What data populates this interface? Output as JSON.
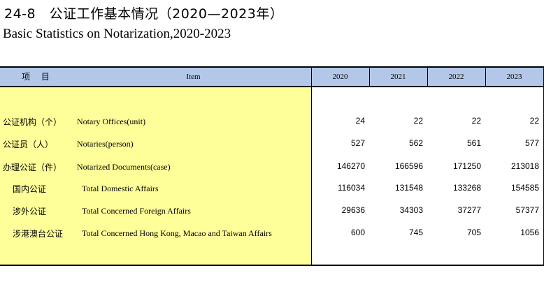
{
  "title": {
    "cn": "24-8　公证工作基本情况（2020—2023年）",
    "en": "Basic Statistics on Notarization,2020-2023"
  },
  "header": {
    "item_cn": "项 目",
    "item_en": "Item",
    "years": [
      "2020",
      "2021",
      "2022",
      "2023"
    ]
  },
  "rows": [
    {
      "cn": "公证机构（个）",
      "en": "Notary Offices(unit)",
      "values": [
        "24",
        "22",
        "22",
        "22"
      ]
    },
    {
      "cn": "公证员（人）",
      "en": "Notaries(person)",
      "values": [
        "527",
        "562",
        "561",
        "577"
      ]
    },
    {
      "cn": "办理公证（件）",
      "en": "Notarized Documents(case)",
      "values": [
        "146270",
        "166596",
        "171250",
        "213018"
      ]
    },
    {
      "cn": "国内公证",
      "en": "Total Domestic Affairs",
      "values": [
        "116034",
        "131548",
        "133268",
        "154585"
      ]
    },
    {
      "cn": "涉外公证",
      "en": "Total Concerned Foreign Affairs",
      "values": [
        "29636",
        "34303",
        "37277",
        "57377"
      ]
    },
    {
      "cn": "涉港澳台公证",
      "en": "Total Concerned Hong Kong, Macao and Taiwan Affairs",
      "values": [
        "600",
        "745",
        "705",
        "1056"
      ]
    }
  ],
  "colors": {
    "header_bg": "#b3c8e8",
    "label_bg": "#ffff99"
  }
}
